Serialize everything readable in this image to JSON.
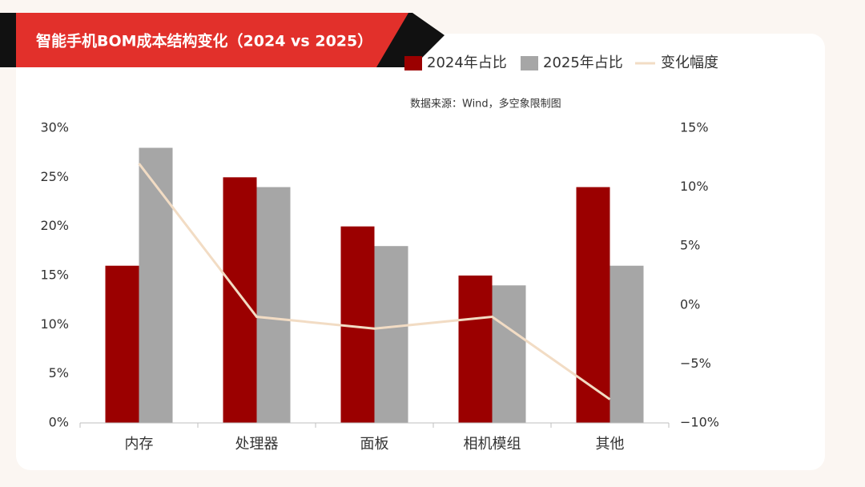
{
  "chart_data": {
    "type": "bar_line",
    "title": "智能手机BOM成本结构变化（2024 vs 2025）",
    "source": "数据来源：Wind，多空象限制图",
    "categories": [
      "内存",
      "处理器",
      "面板",
      "相机模组",
      "其他"
    ],
    "series": [
      {
        "name": "2024年占比",
        "color": "#9b0000",
        "values": [
          16,
          25,
          20,
          15,
          24
        ]
      },
      {
        "name": "2025年占比",
        "color": "#a6a6a6",
        "values": [
          28,
          24,
          18,
          14,
          16
        ]
      },
      {
        "name": "变化幅度",
        "color": "#f2dcc4",
        "axis": "y2",
        "values": [
          12,
          -1,
          -2,
          -1,
          -8
        ]
      }
    ],
    "ylim": [
      0,
      30
    ],
    "yticks": [
      {
        "value": 0,
        "label": "0%"
      },
      {
        "value": 5,
        "label": "5%"
      },
      {
        "value": 10,
        "label": "10%"
      },
      {
        "value": 15,
        "label": "15%"
      },
      {
        "value": 20,
        "label": "20%"
      },
      {
        "value": 25,
        "label": "25%"
      },
      {
        "value": 30,
        "label": "30%"
      }
    ],
    "y2lim": [
      -10,
      15
    ],
    "y2ticks": [
      {
        "value": -10,
        "label": "−10%"
      },
      {
        "value": -5,
        "label": "−5%"
      },
      {
        "value": 0,
        "label": "0%"
      },
      {
        "value": 5,
        "label": "5%"
      },
      {
        "value": 10,
        "label": "10%"
      },
      {
        "value": 15,
        "label": "15%"
      }
    ],
    "grid": false
  }
}
